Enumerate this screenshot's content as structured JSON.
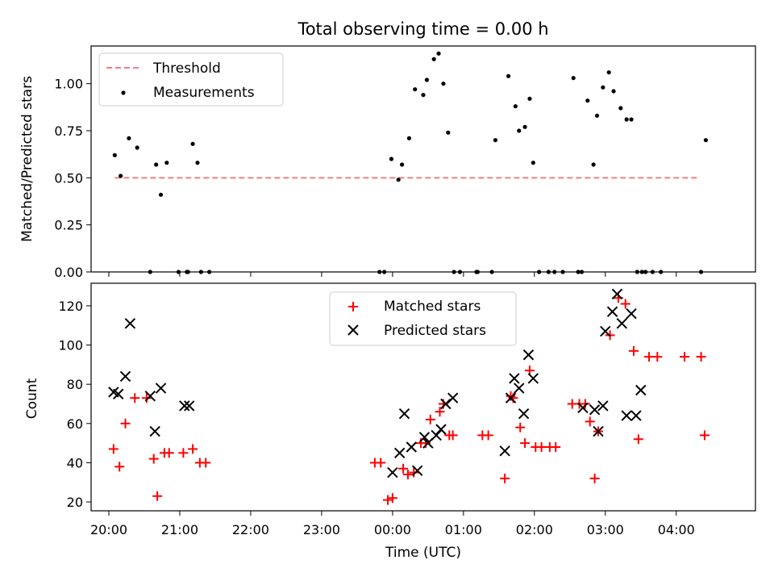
{
  "title": "Total observing time = 0.00 h",
  "colors": {
    "threshold": "#f08080",
    "measurement": "#000000",
    "matched": "#ff0000",
    "predicted": "#000000"
  },
  "chart_data": [
    {
      "type": "scatter",
      "name": "ratio-panel",
      "ylabel": "Matched/Predicted stars",
      "ylim": [
        0,
        1.2
      ],
      "yticks": [
        0,
        0.25,
        0.5,
        0.75,
        1.0
      ],
      "ytick_labels": [
        "0.00",
        "0.25",
        "0.50",
        "0.75",
        "1.00"
      ],
      "xlim": [
        "19:45",
        "05:07"
      ],
      "legend_position": "top-left",
      "legend": [
        "Threshold",
        "Measurements"
      ],
      "threshold": {
        "name": "Threshold",
        "value": 0.5,
        "x_start": "20:05",
        "x_end": "04:20",
        "style": "dashed"
      },
      "series": [
        {
          "name": "Measurements",
          "x": [
            "20:05",
            "20:10",
            "20:17",
            "20:24",
            "20:35",
            "20:40",
            "20:44",
            "20:49",
            "20:59",
            "21:06",
            "21:07",
            "21:11",
            "21:15",
            "21:18",
            "21:25",
            "23:49",
            "23:53",
            "23:59",
            "00:05",
            "00:08",
            "00:14",
            "00:19",
            "00:26",
            "00:29",
            "00:35",
            "00:39",
            "00:43",
            "00:47",
            "00:52",
            "00:57",
            "01:11",
            "01:12",
            "01:24",
            "01:27",
            "01:38",
            "01:44",
            "01:47",
            "01:52",
            "01:56",
            "01:59",
            "02:04",
            "02:12",
            "02:17",
            "02:24",
            "02:33",
            "02:37",
            "02:40",
            "02:45",
            "02:50",
            "02:53",
            "02:58",
            "03:03",
            "03:07",
            "03:13",
            "03:18",
            "03:22",
            "03:27",
            "03:31",
            "03:34",
            "03:40",
            "03:47",
            "04:21",
            "04:25"
          ],
          "y": [
            0.62,
            0.51,
            0.71,
            0.66,
            0.0,
            0.57,
            0.41,
            0.58,
            0.0,
            0.0,
            0.0,
            0.68,
            0.58,
            0.0,
            0.0,
            0.0,
            0.0,
            0.6,
            0.49,
            0.57,
            0.71,
            0.97,
            0.94,
            1.02,
            1.13,
            1.16,
            1.0,
            0.74,
            0.0,
            0.0,
            0.0,
            0.0,
            0.0,
            0.7,
            1.04,
            0.88,
            0.75,
            0.77,
            0.92,
            0.58,
            0.0,
            0.0,
            0.0,
            0.0,
            1.03,
            0.0,
            0.0,
            0.91,
            0.57,
            0.83,
            0.98,
            1.06,
            0.96,
            0.87,
            0.81,
            0.81,
            0.0,
            0.0,
            0.0,
            0.0,
            0.0,
            0.0,
            0.7
          ]
        }
      ]
    },
    {
      "type": "scatter",
      "name": "count-panel",
      "xlabel": "Time (UTC)",
      "ylabel": "Count",
      "ylim": [
        15.5,
        131.5
      ],
      "yticks": [
        20,
        40,
        60,
        80,
        100,
        120
      ],
      "ytick_labels": [
        "20",
        "40",
        "60",
        "80",
        "100",
        "120"
      ],
      "xlim": [
        "19:45",
        "05:07"
      ],
      "xticks": [
        "20:00",
        "21:00",
        "22:00",
        "23:00",
        "00:00",
        "01:00",
        "02:00",
        "03:00",
        "04:00"
      ],
      "legend_position": "top-center",
      "legend": [
        "Matched stars",
        "Predicted stars"
      ],
      "series": [
        {
          "name": "Matched stars",
          "marker": "+",
          "x": [
            "20:04",
            "20:09",
            "20:14",
            "20:22",
            "20:32",
            "20:38",
            "20:41",
            "20:47",
            "20:51",
            "21:03",
            "21:11",
            "21:17",
            "21:22",
            "23:45",
            "23:50",
            "23:56",
            "00:00",
            "00:09",
            "00:13",
            "00:18",
            "00:24",
            "00:28",
            "00:32",
            "00:40",
            "00:43",
            "00:48",
            "00:51",
            "01:16",
            "01:21",
            "01:35",
            "01:40",
            "01:42",
            "01:48",
            "01:52",
            "01:56",
            "02:01",
            "02:06",
            "02:13",
            "02:18",
            "02:32",
            "02:38",
            "02:43",
            "02:47",
            "02:51",
            "02:54",
            "03:04",
            "03:11",
            "03:17",
            "03:24",
            "03:28",
            "03:37",
            "03:44",
            "04:07",
            "04:21",
            "04:24"
          ],
          "y": [
            47,
            38,
            60,
            73,
            73,
            42,
            23,
            45,
            45,
            45,
            47,
            40,
            40,
            40,
            40,
            21,
            22,
            37,
            34,
            35,
            50,
            50,
            62,
            66,
            70,
            54,
            54,
            54,
            54,
            32,
            74,
            73,
            58,
            50,
            87,
            48,
            48,
            48,
            48,
            70,
            70,
            70,
            61,
            32,
            56,
            105,
            124,
            121,
            97,
            52,
            94,
            94,
            94,
            94,
            54
          ]
        },
        {
          "name": "Predicted stars",
          "marker": "x",
          "x": [
            "20:04",
            "20:08",
            "20:14",
            "20:18",
            "20:35",
            "20:39",
            "20:44",
            "21:04",
            "21:08",
            "00:00",
            "00:06",
            "00:10",
            "00:16",
            "00:21",
            "00:27",
            "00:30",
            "00:37",
            "00:41",
            "00:45",
            "00:51",
            "01:35",
            "01:40",
            "01:43",
            "01:47",
            "01:51",
            "01:55",
            "01:59",
            "02:41",
            "02:51",
            "02:54",
            "02:58",
            "03:00",
            "03:06",
            "03:10",
            "03:14",
            "03:18",
            "03:22",
            "03:26",
            "03:30"
          ],
          "y": [
            76,
            75,
            84,
            111,
            74,
            56,
            78,
            69,
            69,
            35,
            45,
            65,
            48,
            36,
            53,
            50,
            54,
            57,
            70,
            73,
            46,
            73,
            83,
            78,
            65,
            95,
            83,
            68,
            67,
            56,
            69,
            107,
            117,
            126,
            111,
            64,
            116,
            64,
            77
          ]
        }
      ]
    }
  ]
}
